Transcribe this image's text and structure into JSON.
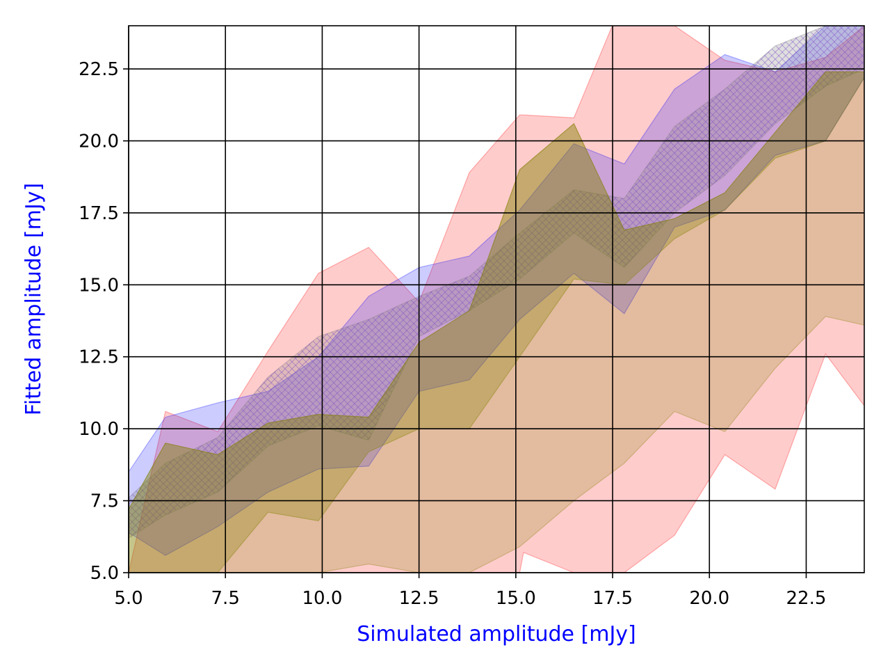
{
  "chart_data": {
    "type": "area",
    "xlabel": "Simulated amplitude [mJy]",
    "ylabel": "Fitted amplitude [mJy]",
    "axis_label_color": "#0000ff",
    "xlim": [
      5.0,
      24.0
    ],
    "ylim": [
      5.0,
      24.0
    ],
    "xticks": [
      "5.0",
      "7.5",
      "10.0",
      "12.5",
      "15.0",
      "17.5",
      "20.0",
      "22.5"
    ],
    "yticks": [
      "5.0",
      "7.5",
      "10.0",
      "12.5",
      "15.0",
      "17.5",
      "20.0",
      "22.5"
    ],
    "grid": true,
    "series": [
      {
        "color": "#ff0000",
        "opacity": 0.2,
        "hatch": false,
        "x": [
          5.0,
          5.95,
          7.3,
          8.6,
          9.9,
          11.2,
          12.5,
          13.8,
          15.1,
          15.2,
          16.5,
          17.8,
          19.1,
          20.4,
          21.7,
          23.0,
          24.0
        ],
        "upper": [
          5.0,
          10.6,
          9.9,
          12.7,
          15.4,
          16.3,
          14.4,
          18.9,
          20.9,
          20.9,
          20.8,
          25.0,
          24.0,
          22.8,
          22.4,
          22.9,
          24.0
        ],
        "lower": [
          5.0,
          5.0,
          5.0,
          5.0,
          5.0,
          5.0,
          5.0,
          5.0,
          5.0,
          5.7,
          5.0,
          5.0,
          6.3,
          9.1,
          7.9,
          12.6,
          10.8
        ]
      },
      {
        "color": "#0000ff",
        "opacity": 0.2,
        "hatch": false,
        "x": [
          5.0,
          5.95,
          7.3,
          8.6,
          9.9,
          11.2,
          12.5,
          13.8,
          15.1,
          16.5,
          17.8,
          19.1,
          20.4,
          21.7,
          23.0,
          24.0
        ],
        "upper": [
          8.5,
          10.4,
          10.9,
          11.3,
          12.5,
          14.6,
          15.6,
          16.0,
          17.6,
          19.9,
          19.2,
          21.8,
          23.0,
          22.4,
          24.0,
          24.0
        ],
        "lower": [
          6.4,
          5.6,
          6.6,
          7.8,
          8.6,
          8.7,
          11.3,
          11.7,
          13.8,
          15.4,
          14.0,
          17.0,
          17.6,
          19.5,
          20.0,
          22.2
        ]
      },
      {
        "color": "#7f7f7f",
        "opacity": 0.25,
        "hatch": true,
        "x": [
          5.0,
          5.95,
          7.3,
          8.6,
          9.9,
          11.2,
          12.5,
          13.8,
          15.1,
          16.5,
          17.8,
          19.1,
          20.4,
          21.7,
          23.0,
          24.0
        ],
        "upper": [
          7.6,
          8.8,
          9.7,
          11.8,
          13.2,
          13.8,
          14.6,
          15.3,
          16.8,
          18.3,
          18.0,
          20.5,
          21.8,
          23.3,
          24.0,
          24.0
        ],
        "lower": [
          6.2,
          7.0,
          7.8,
          9.4,
          10.1,
          9.6,
          13.2,
          14.1,
          15.2,
          16.8,
          15.6,
          17.5,
          18.8,
          20.6,
          21.9,
          22.5
        ]
      },
      {
        "color": "#808000",
        "opacity": 0.3,
        "hatch": false,
        "x": [
          5.0,
          5.95,
          7.3,
          8.6,
          9.9,
          11.2,
          12.5,
          13.8,
          15.1,
          16.5,
          17.8,
          19.1,
          20.4,
          21.7,
          23.0,
          24.0
        ],
        "upper": [
          7.2,
          9.5,
          9.1,
          10.2,
          10.5,
          10.4,
          13.0,
          14.1,
          19.0,
          20.6,
          16.9,
          17.3,
          18.2,
          20.3,
          22.4,
          22.4
        ],
        "lower": [
          5.0,
          5.0,
          5.0,
          7.1,
          6.8,
          9.2,
          10.0,
          10.0,
          12.5,
          15.2,
          15.0,
          16.6,
          17.6,
          19.4,
          20.0,
          22.2
        ]
      },
      {
        "color": "#808000",
        "opacity": 0.22,
        "hatch": false,
        "x": [
          5.0,
          5.95,
          7.3,
          8.6,
          9.9,
          11.2,
          12.5,
          13.8,
          15.1,
          16.5,
          17.8,
          19.1,
          20.4,
          21.7,
          23.0,
          24.0
        ],
        "upper": [
          7.2,
          9.5,
          9.1,
          10.2,
          10.5,
          10.4,
          13.0,
          14.1,
          19.0,
          20.6,
          16.9,
          17.3,
          18.2,
          20.3,
          22.4,
          22.4
        ],
        "lower": [
          5.0,
          5.0,
          5.0,
          5.0,
          5.0,
          5.3,
          5.0,
          5.0,
          5.9,
          7.5,
          8.8,
          10.6,
          9.9,
          12.1,
          13.9,
          13.6
        ]
      }
    ]
  }
}
